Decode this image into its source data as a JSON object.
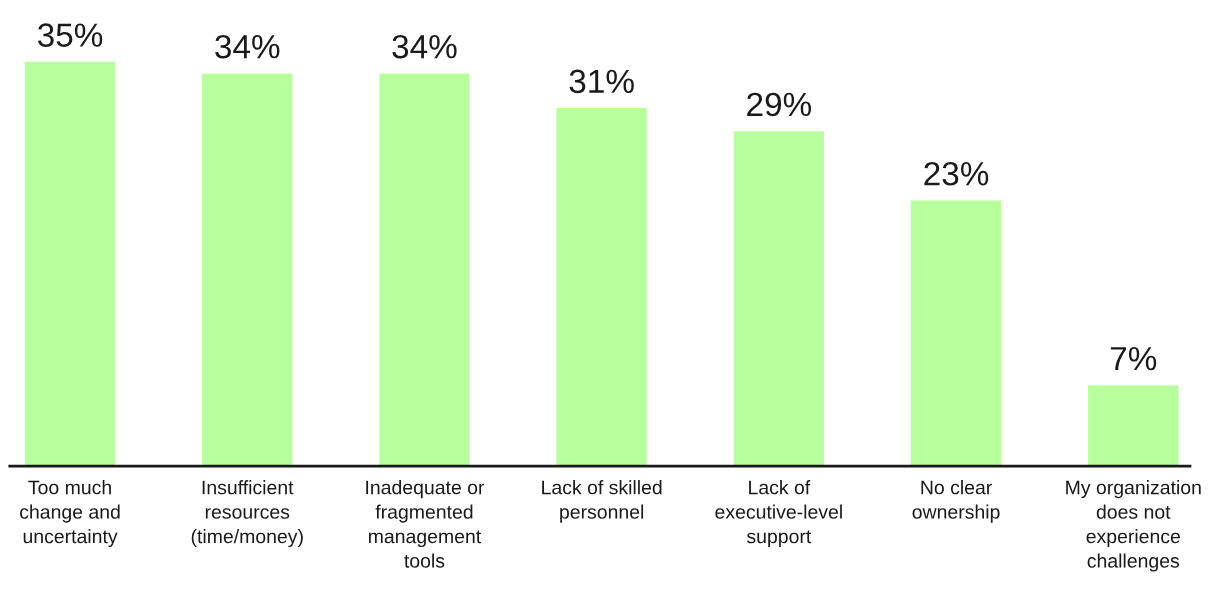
{
  "chart_data": {
    "type": "bar",
    "categories": [
      "Too much\nchange and\nuncertainty",
      "Insufficient\nresources\n(time/money)",
      "Inadequate or\nfragmented\nmanagement\ntools",
      "Lack of skilled\npersonnel",
      "Lack of\nexecutive-level\nsupport",
      "No clear\nownership",
      "My organization\ndoes not\nexperience\nchallenges"
    ],
    "values": [
      35,
      34,
      34,
      31,
      29,
      23,
      7
    ],
    "color": "#b8ff9e",
    "value_labels": [
      "35%",
      "34%",
      "34%",
      "31%",
      "29%",
      "23%",
      "7%"
    ],
    "grid": false,
    "legend": false
  }
}
